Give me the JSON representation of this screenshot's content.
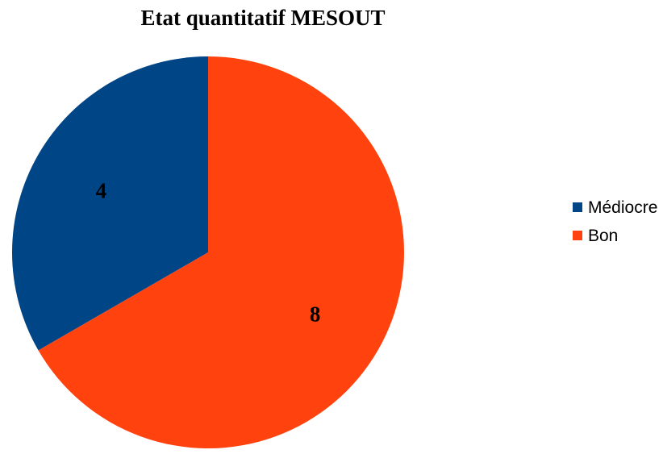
{
  "chart_data": {
    "type": "pie",
    "title": "Etat quantitatif MESOUT",
    "slices": [
      {
        "label": "Médiocre",
        "value": 4,
        "color": "#004586"
      },
      {
        "label": "Bon",
        "value": 8,
        "color": "#ff420e"
      }
    ],
    "start_angle_deg": 0,
    "direction": "counterclockwise",
    "data_labels": true,
    "legend_position": "right"
  }
}
